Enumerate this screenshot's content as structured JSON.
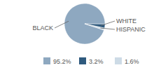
{
  "chart_data": {
    "type": "pie",
    "categories": [
      "BLACK",
      "WHITE",
      "HISPANIC"
    ],
    "values": [
      95.2,
      3.2,
      1.6
    ],
    "value_labels": [
      "95.2%",
      "3.2%",
      "1.6%"
    ],
    "colors": [
      "#8ea8c0",
      "#2f5a7e",
      "#cddbe6"
    ]
  }
}
